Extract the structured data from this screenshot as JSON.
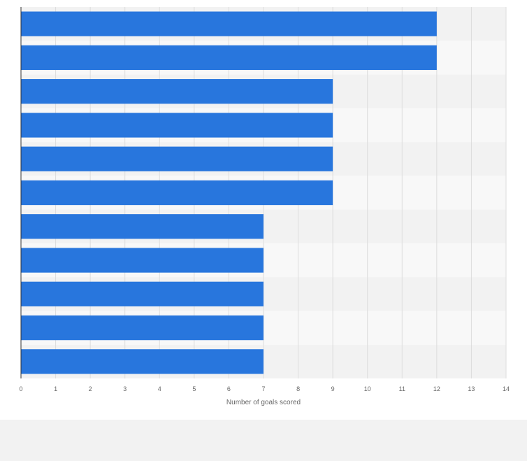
{
  "chart_data": {
    "type": "bar",
    "orientation": "horizontal",
    "categories": [
      "",
      "",
      "",
      "",
      "",
      "",
      "",
      "",
      "",
      "",
      ""
    ],
    "values": [
      12,
      12,
      9,
      9,
      9,
      9,
      7,
      7,
      7,
      7,
      7
    ],
    "title": "",
    "xlabel": "Number of goals scored",
    "ylabel": "",
    "xlim": [
      0,
      14
    ],
    "xticks": [
      "0",
      "1",
      "2",
      "3",
      "4",
      "5",
      "6",
      "7",
      "8",
      "9",
      "10",
      "11",
      "12",
      "13",
      "14"
    ],
    "grid": true,
    "bar_color": "#2876dd",
    "band_colors": [
      "#f2f2f2",
      "#f8f8f8"
    ],
    "gridline_color": "#dddddd",
    "axis_color": "#333333"
  }
}
